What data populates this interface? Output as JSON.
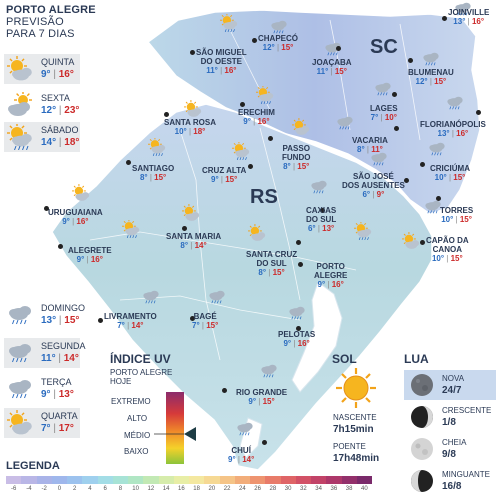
{
  "header": {
    "city": "PORTO ALEGRE",
    "line2": "PREVISÃO",
    "line3": "PARA 7 DIAS"
  },
  "forecast": [
    {
      "day": "QUINTA",
      "min": "9°",
      "max": "16°",
      "icon": "sun-cloud-icon"
    },
    {
      "day": "SEXTA",
      "min": "12°",
      "max": "23°",
      "icon": "cloud-sun-icon"
    },
    {
      "day": "SÁBADO",
      "min": "14°",
      "max": "18°",
      "icon": "sun-cloud-rain-icon"
    },
    {
      "day": "DOMINGO",
      "min": "13°",
      "max": "15°",
      "icon": "rain-cloud-icon"
    },
    {
      "day": "SEGUNDA",
      "min": "11°",
      "max": "14°",
      "icon": "rain-cloud-icon"
    },
    {
      "day": "TERÇA",
      "min": "9°",
      "max": "13°",
      "icon": "rain-cloud-icon"
    },
    {
      "day": "QUARTA",
      "min": "7°",
      "max": "17°",
      "icon": "sun-cloud-icon"
    }
  ],
  "states": {
    "sc": "SC",
    "rs": "RS"
  },
  "cities": [
    {
      "name": "JOINVILLE",
      "min": "13°",
      "max": "16°"
    },
    {
      "name": "CHAPECÓ",
      "min": "12°",
      "max": "15°"
    },
    {
      "name": "SÃO MIGUEL\nDO OESTE",
      "min": "11°",
      "max": "16°"
    },
    {
      "name": "JOAÇABA",
      "min": "11°",
      "max": "15°"
    },
    {
      "name": "BLUMENAU",
      "min": "12°",
      "max": "15°"
    },
    {
      "name": "SANTA ROSA",
      "min": "10°",
      "max": "18°"
    },
    {
      "name": "ERECHIM",
      "min": "9°",
      "max": "16°"
    },
    {
      "name": "LAGES",
      "min": "7°",
      "max": "10°"
    },
    {
      "name": "FLORIANÓPOLIS",
      "min": "13°",
      "max": "16°"
    },
    {
      "name": "PASSO\nFUNDO",
      "min": "8°",
      "max": "15°"
    },
    {
      "name": "VACARIA",
      "min": "8°",
      "max": "11°"
    },
    {
      "name": "SANTIAGO",
      "min": "8°",
      "max": "15°"
    },
    {
      "name": "CRUZ ALTA",
      "min": "9°",
      "max": "15°"
    },
    {
      "name": "SÃO JOSÉ\nDOS AUSENTES",
      "min": "6°",
      "max": "9°"
    },
    {
      "name": "CRICIÚMA",
      "min": "10°",
      "max": "15°"
    },
    {
      "name": "URUGUAIANA",
      "min": "9°",
      "max": "16°"
    },
    {
      "name": "TORRES",
      "min": "10°",
      "max": "15°"
    },
    {
      "name": "CAXIAS\nDO SUL",
      "min": "6°",
      "max": "13°"
    },
    {
      "name": "SANTA MARIA",
      "min": "8°",
      "max": "14°"
    },
    {
      "name": "ALEGRETE",
      "min": "9°",
      "max": "16°"
    },
    {
      "name": "CAPÃO DA\nCANOA",
      "min": "10°",
      "max": "15°"
    },
    {
      "name": "SANTA CRUZ\nDO SUL",
      "min": "8°",
      "max": "15°"
    },
    {
      "name": "PORTO\nALEGRE",
      "min": "9°",
      "max": "16°"
    },
    {
      "name": "LIVRAMENTO",
      "min": "7°",
      "max": "14°"
    },
    {
      "name": "BAGÉ",
      "min": "7°",
      "max": "15°"
    },
    {
      "name": "PELOTAS",
      "min": "9°",
      "max": "16°"
    },
    {
      "name": "RIO GRANDE",
      "min": "9°",
      "max": "15°"
    },
    {
      "name": "CHUÍ",
      "min": "9°",
      "max": "14°"
    }
  ],
  "uv": {
    "title": "ÍNDICE UV",
    "subtitle": "PORTO ALEGRE\nHOJE",
    "levels": [
      "EXTREMO",
      "ALTO",
      "MÉDIO",
      "BAIXO"
    ],
    "current": "MÉDIO"
  },
  "sun": {
    "title": "SOL",
    "rise_label": "NASCENTE",
    "rise": "7h15min",
    "set_label": "POENTE",
    "set": "17h48min"
  },
  "moon": {
    "title": "LUA",
    "phases": [
      {
        "name": "NOVA",
        "date": "24/7"
      },
      {
        "name": "CRESCENTE",
        "date": "1/8"
      },
      {
        "name": "CHEIA",
        "date": "9/8"
      },
      {
        "name": "MINGUANTE",
        "date": "16/8"
      }
    ]
  },
  "legend": {
    "title": "LEGENDA",
    "ticks": [
      "-6",
      "-4",
      "-2",
      "0",
      "2",
      "4",
      "6",
      "8",
      "10",
      "12",
      "14",
      "16",
      "18",
      "20",
      "22",
      "24",
      "26",
      "28",
      "30",
      "32",
      "34",
      "36",
      "38",
      "40"
    ],
    "colors": [
      "#c9bde6",
      "#b9b6e6",
      "#a9b3e8",
      "#9fb7ec",
      "#9cc2ee",
      "#9fd0ee",
      "#a3dde6",
      "#a7e3d6",
      "#b0e6c4",
      "#c2e9b4",
      "#d6ecab",
      "#e8eea6",
      "#f4e8a0",
      "#f6d994",
      "#f5c487",
      "#f2ad7a",
      "#ee9470",
      "#e87b69",
      "#df6466",
      "#d25166",
      "#c24368",
      "#ad386a",
      "#93306b",
      "#7a2a6a"
    ]
  }
}
